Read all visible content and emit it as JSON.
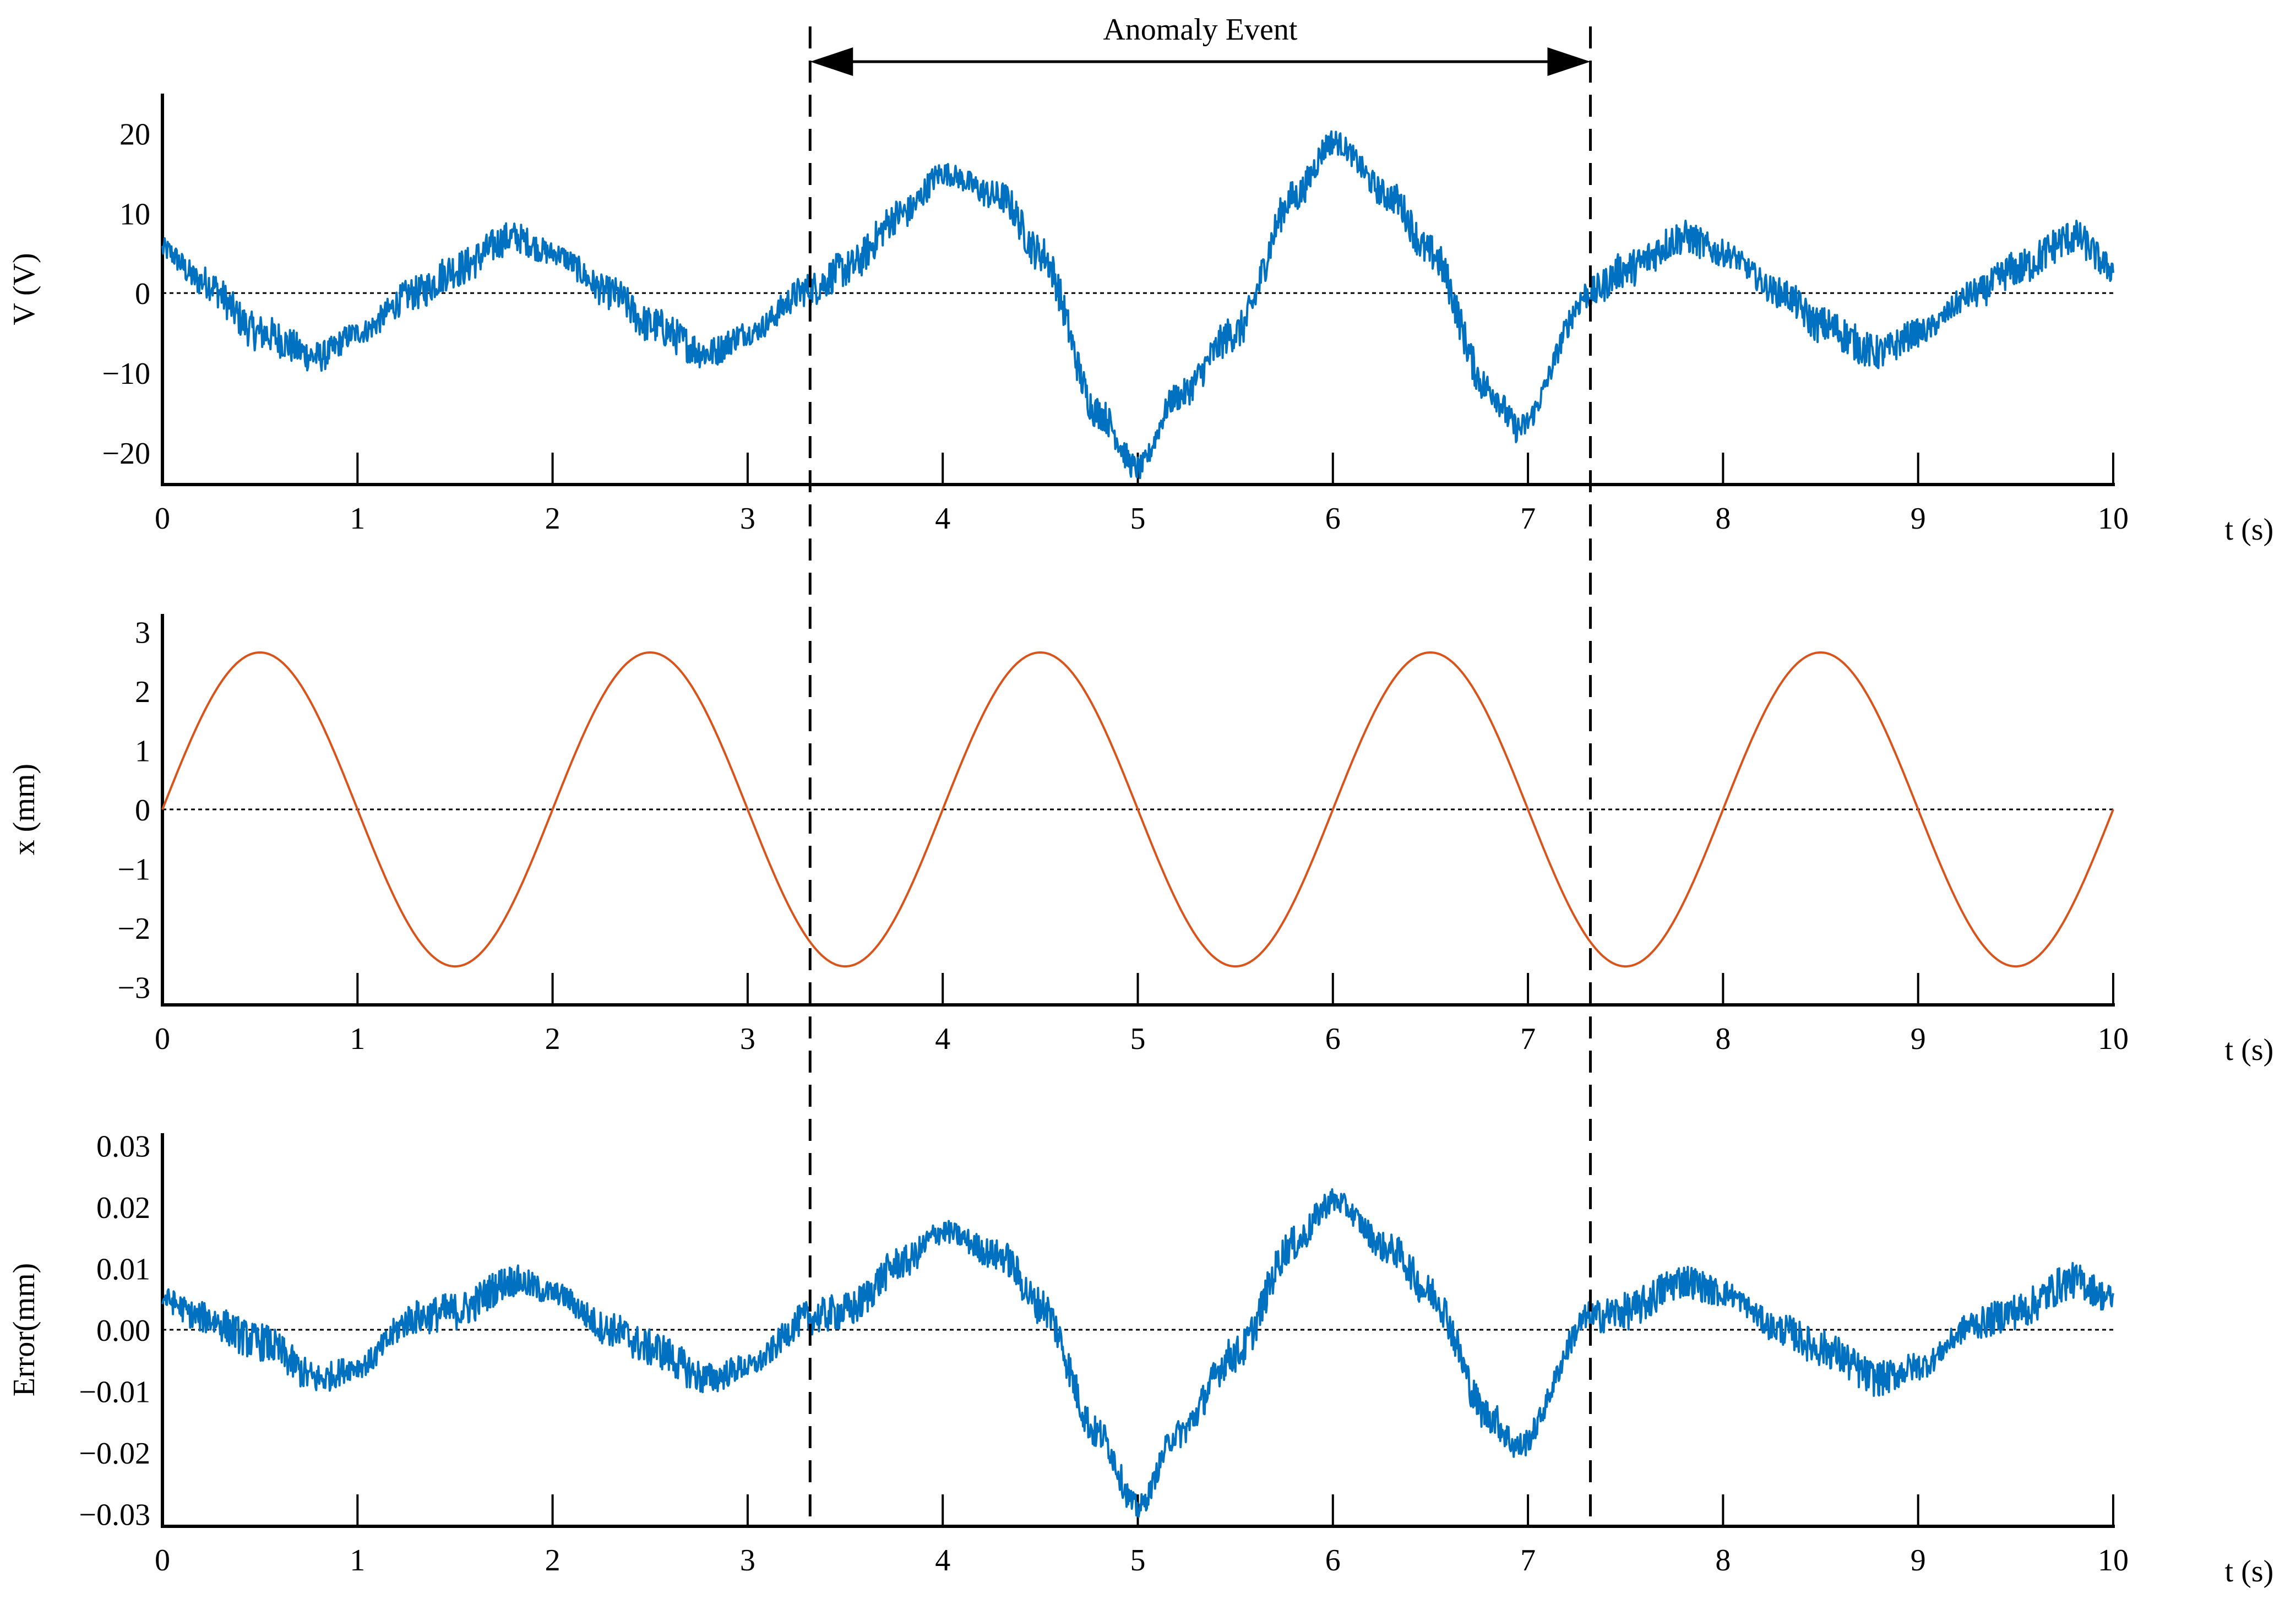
{
  "event": {
    "label": "Anomaly Event",
    "t_start": 3.32,
    "t_end": 7.32
  },
  "colors": {
    "voltage": "#0071c1",
    "displacement": "#d9531a",
    "error": "#0071c1",
    "axis": "#000000",
    "zero_line": "#000000"
  },
  "chart_data": [
    {
      "type": "line",
      "ylabel": "V (V)",
      "xlabel": "t (s)",
      "xlim": [
        0,
        10
      ],
      "ylim": [
        -24,
        25
      ],
      "yticks": [
        20,
        10,
        0,
        -10,
        -20
      ],
      "ytick_labels": [
        "20",
        "10",
        "0",
        "−10",
        "−20"
      ],
      "xticks": [
        0,
        1,
        2,
        3,
        4,
        5,
        6,
        7,
        8,
        9,
        10
      ],
      "xtick_labels": [
        "0",
        "1",
        "2",
        "3",
        "4",
        "5",
        "6",
        "7",
        "8",
        "9",
        "10"
      ],
      "zero_line": true,
      "series": [
        {
          "x": [
            0,
            0.2,
            0.5,
            0.8,
            1.0,
            1.3,
            1.5,
            1.8,
            2.0,
            2.3,
            2.5,
            2.8,
            3.0,
            3.32,
            3.5,
            3.8,
            4.0,
            4.3,
            4.5,
            4.8,
            5.0,
            5.2,
            5.5,
            5.8,
            6.0,
            6.3,
            6.5,
            6.8,
            6.95,
            7.32,
            7.5,
            7.8,
            8.0,
            8.3,
            8.5,
            8.8,
            9.0,
            9.3,
            9.5,
            9.8,
            10.0
          ],
          "y": [
            5.5,
            1.5,
            -5,
            -8,
            -5,
            0,
            3,
            7,
            5,
            0,
            -4,
            -7.5,
            -5,
            0.5,
            3,
            10,
            15,
            12,
            5,
            -15,
            -22,
            -13,
            -5,
            12,
            19,
            12,
            5,
            -12,
            -17,
            0,
            3,
            7,
            5,
            0,
            -4,
            -7.5,
            -5,
            0,
            3,
            7,
            3
          ]
        }
      ]
    },
    {
      "type": "line",
      "ylabel": "x (mm)",
      "xlabel": "t (s)",
      "xlim": [
        0,
        10
      ],
      "ylim": [
        -3.3,
        3.3
      ],
      "yticks": [
        3,
        2,
        1,
        0,
        -1,
        -2,
        -3
      ],
      "ytick_labels": [
        "3",
        "2",
        "1",
        "0",
        "−1",
        "−2",
        "−3"
      ],
      "xticks": [
        0,
        1,
        2,
        3,
        4,
        5,
        6,
        7,
        8,
        9,
        10
      ],
      "xtick_labels": [
        "0",
        "1",
        "2",
        "3",
        "4",
        "5",
        "6",
        "7",
        "8",
        "9",
        "10"
      ],
      "zero_line": true,
      "series": [
        {
          "x": [
            0,
            0.25,
            0.5,
            0.75,
            1.0,
            1.25,
            1.5,
            1.75,
            2.0,
            2.25,
            2.5,
            2.75,
            3.0,
            3.25,
            3.5,
            3.75,
            4.0,
            4.25,
            4.5,
            4.75,
            5.0,
            5.25,
            5.5,
            5.75,
            6.0,
            6.25,
            6.5,
            6.75,
            7.0,
            7.25,
            7.5,
            7.75,
            8.0,
            8.25,
            8.5,
            8.75,
            9.0,
            9.25,
            9.5,
            9.75,
            10.0
          ],
          "y": [
            0,
            1.87,
            2.65,
            1.87,
            0,
            -1.87,
            -2.65,
            -1.87,
            0,
            1.87,
            2.65,
            1.87,
            0,
            -1.87,
            -2.65,
            -1.87,
            0,
            1.87,
            2.65,
            1.87,
            0,
            -1.87,
            -2.65,
            -1.87,
            0,
            1.87,
            2.65,
            1.87,
            0,
            -1.87,
            -2.65,
            -1.87,
            0,
            1.87,
            2.65,
            1.87,
            0,
            -1.87,
            -2.65,
            -1.87,
            0
          ]
        }
      ]
    },
    {
      "type": "line",
      "ylabel": "Error(mm)",
      "xlabel": "t (s)",
      "xlim": [
        0,
        10
      ],
      "ylim": [
        -0.032,
        0.032
      ],
      "yticks": [
        0.03,
        0.02,
        0.01,
        0.0,
        -0.01,
        -0.02,
        -0.03
      ],
      "ytick_labels": [
        "0.03",
        "0.02",
        "0.01",
        "0.00",
        "−0.01",
        "−0.02",
        "−0.03"
      ],
      "xticks": [
        0,
        1,
        2,
        3,
        4,
        5,
        6,
        7,
        8,
        9,
        10
      ],
      "xtick_labels": [
        "0",
        "1",
        "2",
        "3",
        "4",
        "5",
        "6",
        "7",
        "8",
        "9",
        "10"
      ],
      "zero_line": true,
      "series": [
        {
          "x": [
            0,
            0.2,
            0.5,
            0.8,
            1.0,
            1.3,
            1.5,
            1.8,
            2.0,
            2.3,
            2.5,
            2.8,
            3.0,
            3.32,
            3.5,
            3.8,
            4.0,
            4.3,
            4.5,
            4.8,
            5.0,
            5.2,
            5.5,
            5.8,
            6.0,
            6.3,
            6.5,
            6.8,
            6.95,
            7.32,
            7.5,
            7.8,
            8.0,
            8.3,
            8.5,
            8.8,
            9.0,
            9.3,
            9.5,
            9.8,
            10.0
          ],
          "y": [
            0.005,
            0.002,
            -0.002,
            -0.008,
            -0.006,
            0.002,
            0.003,
            0.008,
            0.006,
            0.0,
            -0.003,
            -0.008,
            -0.006,
            0.002,
            0.003,
            0.011,
            0.016,
            0.012,
            0.004,
            -0.017,
            -0.029,
            -0.017,
            -0.004,
            0.014,
            0.021,
            0.013,
            0.006,
            -0.014,
            -0.019,
            0.002,
            0.003,
            0.008,
            0.006,
            0.0,
            -0.003,
            -0.008,
            -0.006,
            0.001,
            0.003,
            0.008,
            0.005
          ]
        }
      ]
    }
  ]
}
